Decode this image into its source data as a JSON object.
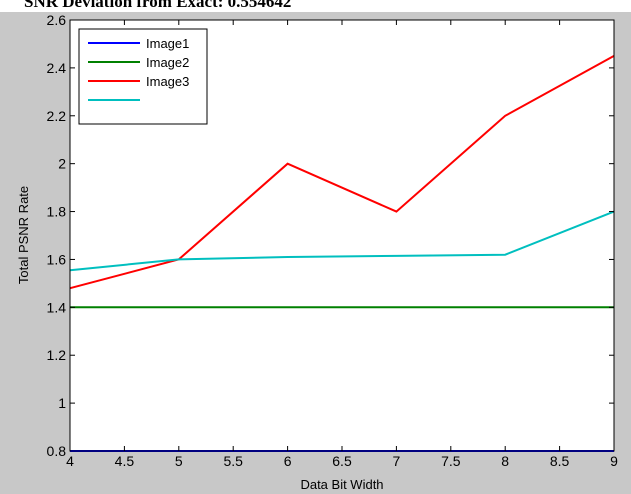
{
  "page_title": "SNR Deviation from Exact: 0.554642",
  "chart_data": {
    "type": "line",
    "title": "",
    "xlabel": "Data Bit Width",
    "ylabel": "Total PSNR Rate",
    "xlim": [
      4,
      9
    ],
    "ylim": [
      0.8,
      2.6
    ],
    "xticks": [
      4,
      4.5,
      5,
      5.5,
      6,
      6.5,
      7,
      7.5,
      8,
      8.5,
      9
    ],
    "yticks": [
      0.8,
      1,
      1.2,
      1.4,
      1.6,
      1.8,
      2,
      2.2,
      2.4,
      2.6
    ],
    "grid": false,
    "legend_position": "top-left",
    "series": [
      {
        "name": "Image1",
        "color": "#0000ff",
        "x": [
          4,
          5,
          6,
          7,
          8,
          9
        ],
        "values": [
          0.8,
          0.8,
          0.8,
          0.8,
          0.8,
          0.8
        ]
      },
      {
        "name": "Image2",
        "color": "#008000",
        "x": [
          4,
          5,
          6,
          7,
          8,
          9
        ],
        "values": [
          1.4,
          1.4,
          1.4,
          1.4,
          1.4,
          1.4
        ]
      },
      {
        "name": "Image3",
        "color": "#ff0000",
        "x": [
          4,
          5,
          6,
          7,
          8,
          9
        ],
        "values": [
          1.48,
          1.6,
          2.0,
          1.8,
          2.2,
          2.45
        ]
      },
      {
        "name": "",
        "color": "#00bfbf",
        "x": [
          4,
          5,
          6,
          7,
          8,
          9
        ],
        "values": [
          1.555,
          1.6,
          1.61,
          1.615,
          1.62,
          1.8
        ]
      }
    ]
  }
}
